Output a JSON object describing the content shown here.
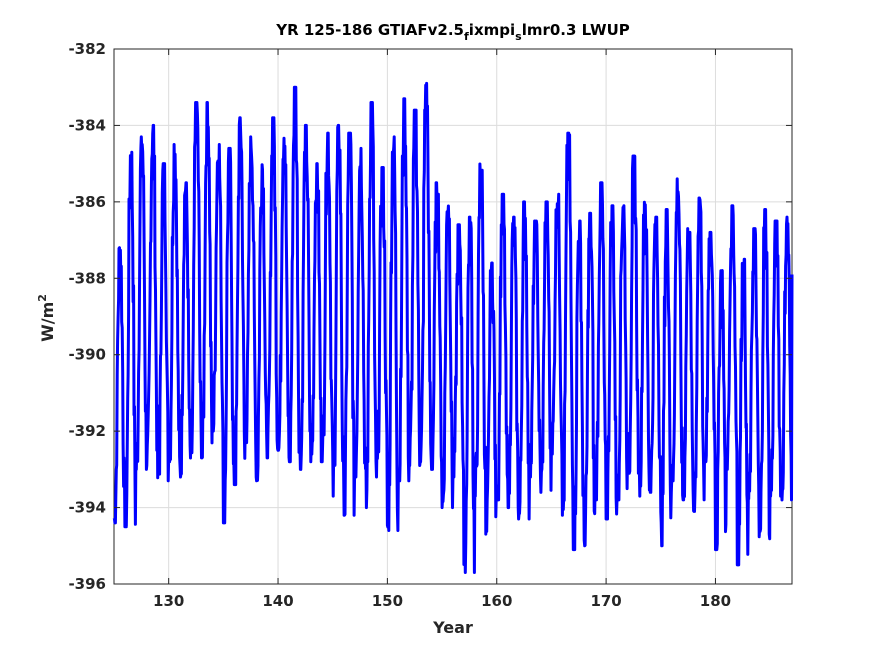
{
  "chart_data": {
    "type": "line",
    "title": {
      "prefix": "YR 125-186 GTIAFv2.5",
      "sub1": "f",
      "mid": "ixmpi",
      "sub2": "s",
      "suffix": "lmr0.3 LWUP"
    },
    "xlabel": "Year",
    "ylabel": {
      "base": "W/m",
      "sup": "2"
    },
    "xlim": [
      125,
      187
    ],
    "ylim": [
      -396,
      -382
    ],
    "xticks": [
      130,
      140,
      150,
      160,
      170,
      180
    ],
    "yticks": [
      -396,
      -394,
      -392,
      -390,
      -388,
      -386,
      -384,
      -382
    ],
    "grid": true,
    "line_color": "#0000ff",
    "series": [
      {
        "cycles_per_year": 12,
        "description_of_points": "monthly values, seasonal oscillation per year",
        "yearly_envelope": {
          "years": [
            125,
            126,
            127,
            128,
            129,
            130,
            131,
            132,
            133,
            134,
            135,
            136,
            137,
            138,
            139,
            140,
            141,
            142,
            143,
            144,
            145,
            146,
            147,
            148,
            149,
            150,
            151,
            152,
            153,
            154,
            155,
            156,
            157,
            158,
            159,
            160,
            161,
            162,
            163,
            164,
            165,
            166,
            167,
            168,
            169,
            170,
            171,
            172,
            173,
            174,
            175,
            176,
            177,
            178,
            179,
            180,
            181,
            182,
            183,
            184,
            185,
            186
          ],
          "max": [
            -387.2,
            -384.7,
            -384.3,
            -384.0,
            -385.0,
            -384.5,
            -385.5,
            -383.4,
            -383.4,
            -384.5,
            -384.6,
            -383.8,
            -384.3,
            -385.0,
            -383.8,
            -384.0,
            -383.0,
            -384.0,
            -385.0,
            -384.2,
            -384.0,
            -384.2,
            -384.6,
            -383.4,
            -385.1,
            -384.3,
            -383.3,
            -383.6,
            -382.9,
            -385.5,
            -385.8,
            -386.6,
            -386.4,
            -385.0,
            -387.6,
            -385.8,
            -386.4,
            -386.0,
            -386.5,
            -386.0,
            -385.8,
            -384.2,
            -386.5,
            -386.3,
            -385.5,
            -386.1,
            -386.0,
            -384.8,
            -386.0,
            -386.4,
            -386.2,
            -385.4,
            -386.7,
            -385.9,
            -386.8,
            -387.8,
            -386.1,
            -387.5,
            -386.7,
            -386.2,
            -386.5,
            -386.4
          ],
          "min": [
            -394.4,
            -394.5,
            -393.0,
            -392.9,
            -393.3,
            -392.8,
            -393.2,
            -392.8,
            -392.7,
            -392.0,
            -394.4,
            -393.4,
            -392.3,
            -393.3,
            -392.7,
            -392.5,
            -392.8,
            -393.0,
            -392.8,
            -392.8,
            -393.7,
            -394.2,
            -393.2,
            -394.0,
            -393.2,
            -394.6,
            -393.3,
            -392.9,
            -392.8,
            -393.0,
            -394.0,
            -393.2,
            -395.7,
            -393.7,
            -394.8,
            -393.8,
            -394.0,
            -394.3,
            -393.2,
            -393.6,
            -392.6,
            -394.2,
            -395.1,
            -395.0,
            -393.8,
            -394.3,
            -393.8,
            -393.1,
            -393.7,
            -393.6,
            -395.0,
            -393.3,
            -393.8,
            -394.1,
            -392.8,
            -395.1,
            -393.0,
            -395.5,
            -393.9,
            -395.0,
            -393.7,
            -393.8
          ]
        }
      }
    ]
  }
}
